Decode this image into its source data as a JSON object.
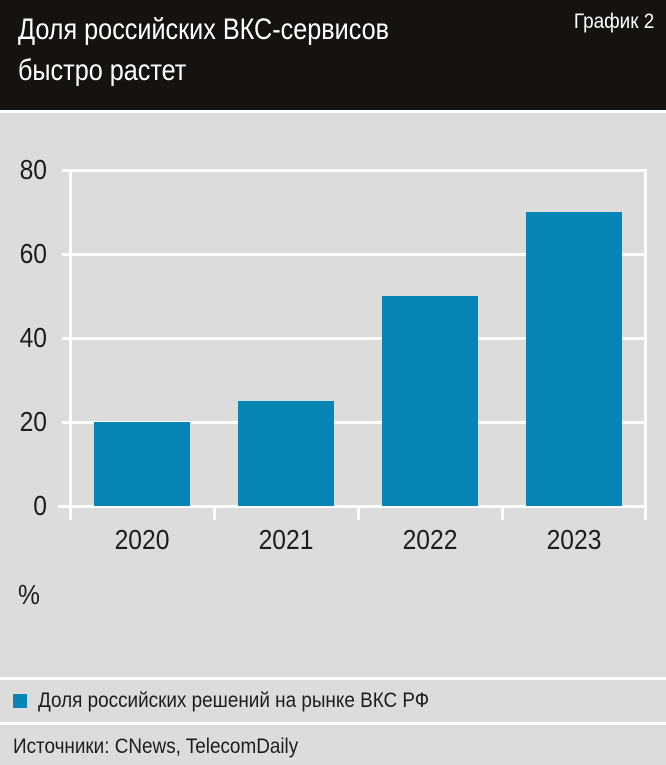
{
  "header": {
    "title_line1": "Доля российских ВКС-сервисов",
    "title_line2": "быстро растет",
    "chart_label": "График 2"
  },
  "chart_data": {
    "type": "bar",
    "categories": [
      "2020",
      "2021",
      "2022",
      "2023"
    ],
    "values": [
      20,
      25,
      50,
      70
    ],
    "title": "Доля российских ВКС-сервисов быстро растет",
    "xlabel": "",
    "ylabel": "%",
    "unit": "%",
    "ylim": [
      0,
      80
    ],
    "yticks": [
      0,
      20,
      40,
      60,
      80
    ],
    "grid": "on",
    "legend_position": "bottom",
    "legend": [
      {
        "label": "Доля российских решений на рынке ВКС РФ",
        "color": "#0785b4"
      }
    ]
  },
  "footer": {
    "sources": "Источники: CNews, TelecomDaily"
  },
  "colors": {
    "page_bg": "#dcdcdd",
    "header_bg": "#15120f",
    "header_text": "#ffffff",
    "grid": "#ffffff",
    "bar": "#0785b4",
    "text": "#1d1d1b"
  }
}
